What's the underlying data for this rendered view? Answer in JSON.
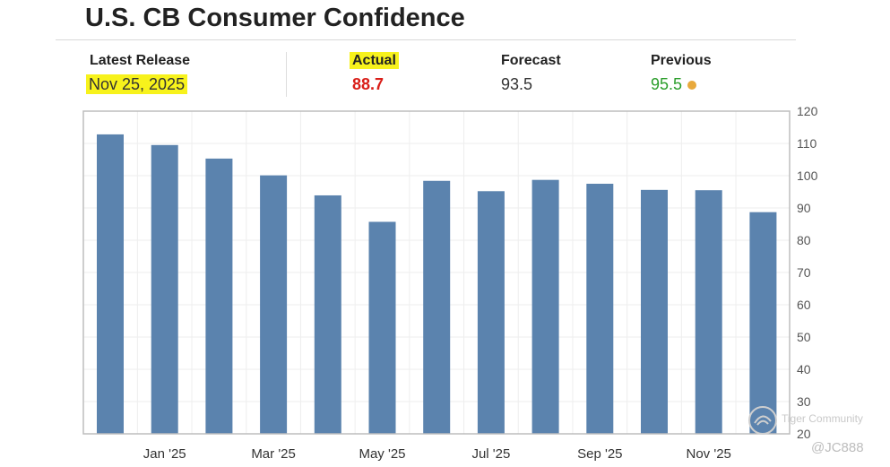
{
  "header": {
    "title": "U.S. CB Consumer Confidence"
  },
  "stats": {
    "latest_release_label": "Latest Release",
    "latest_release_value": "Nov 25, 2025",
    "actual_label": "Actual",
    "actual_value": "88.7",
    "forecast_label": "Forecast",
    "forecast_value": "93.5",
    "previous_label": "Previous",
    "previous_value": "95.5"
  },
  "colors": {
    "bar": "#5b83ae",
    "actual": "#d91e18",
    "previous": "#2a9d2a",
    "highlight": "#f7f21c",
    "previous_dot": "#e8a93c"
  },
  "watermark": {
    "brand": "Tiger Community",
    "handle": "@JC888"
  },
  "chart_data": {
    "type": "bar",
    "title": "U.S. CB Consumer Confidence",
    "categories": [
      "Dec '24",
      "Jan '25",
      "Feb '25",
      "Mar '25",
      "Apr '25",
      "May '25",
      "Jun '25",
      "Jul '25",
      "Aug '25",
      "Sep '25",
      "Oct '25",
      "Nov '25",
      "Dec '25"
    ],
    "values": [
      112.8,
      109.5,
      105.3,
      100.1,
      93.9,
      85.7,
      98.4,
      95.2,
      98.7,
      97.5,
      95.6,
      95.5,
      88.7
    ],
    "x_tick_labels": [
      "Jan '25",
      "Mar '25",
      "May '25",
      "Jul '25",
      "Sep '25",
      "Nov '25"
    ],
    "y_ticks": [
      20,
      30,
      40,
      50,
      60,
      70,
      80,
      90,
      100,
      110,
      120
    ],
    "ylim": [
      20,
      120
    ],
    "y_axis_side": "right",
    "grid": true,
    "xlabel": "",
    "ylabel": ""
  }
}
